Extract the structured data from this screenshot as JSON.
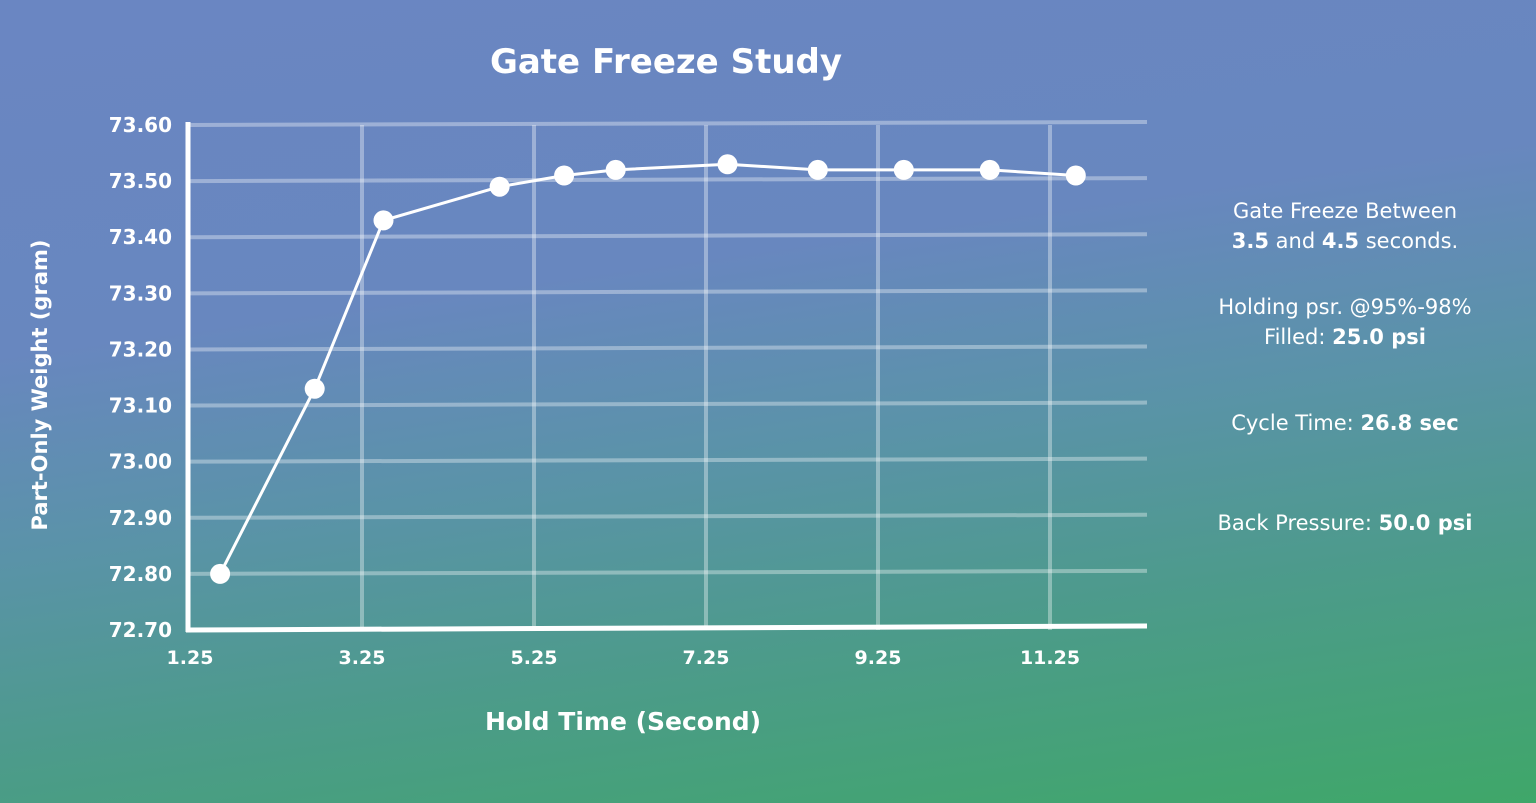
{
  "chart_data": {
    "type": "line",
    "title": "Gate Freeze Study",
    "xlabel": "Hold Time (Second)",
    "ylabel": "Part-Only Weight (gram)",
    "x": [
      1.6,
      2.7,
      3.5,
      4.85,
      5.6,
      6.2,
      7.5,
      8.55,
      9.55,
      10.55,
      11.55
    ],
    "series": [
      {
        "name": "Part-Only Weight",
        "values": [
          72.8,
          73.13,
          73.43,
          73.49,
          73.51,
          73.52,
          73.53,
          73.52,
          73.52,
          73.52,
          73.51
        ]
      }
    ],
    "xlim": [
      1.25,
      12.5
    ],
    "ylim": [
      72.7,
      73.6
    ],
    "xticks": [
      "1.25",
      "3.25",
      "5.25",
      "7.25",
      "9.25",
      "11.25"
    ],
    "yticks": [
      "72.70",
      "72.80",
      "72.90",
      "73.00",
      "73.10",
      "73.20",
      "73.30",
      "73.40",
      "73.50",
      "73.60"
    ],
    "grid": true,
    "legend": "none"
  },
  "labels": {
    "title": "Gate Freeze Study",
    "xlabel": "Hold Time (Second)",
    "ylabel": "Part-Only Weight (gram)"
  },
  "notes": {
    "gate_line1": "Gate Freeze Between",
    "gate_a": "3.5",
    "gate_and": " and ",
    "gate_b": "4.5",
    "gate_end": " seconds.",
    "holding_line1": "Holding psr. @95%-98%",
    "holding_label": "Filled: ",
    "holding_value": "25.0 psi",
    "cycle_label": "Cycle Time: ",
    "cycle_value": "26.8 sec",
    "back_label": "Back Pressure: ",
    "back_value": "50.0 psi"
  },
  "colors": {
    "bg_top": "#6a86c2",
    "bg_bottom": "#3fa769",
    "line": "#ffffff",
    "grid": "rgba(255,255,255,0.35)"
  }
}
